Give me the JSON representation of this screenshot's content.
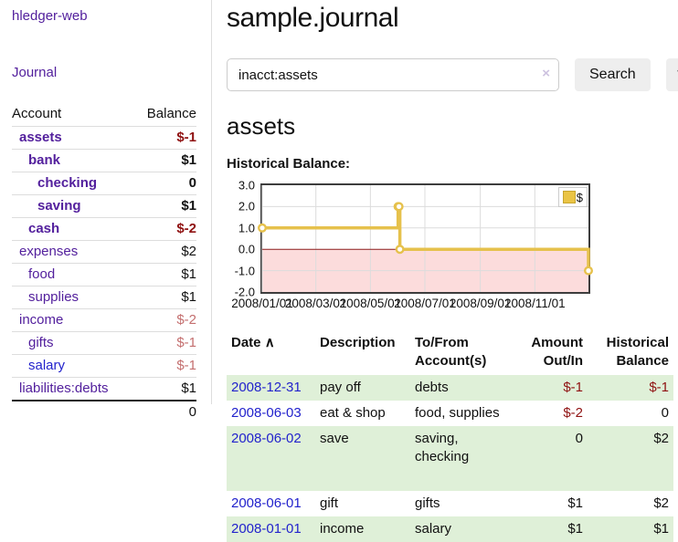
{
  "colors": {
    "link_purple": "#53209d",
    "link_blue": "#2222cc",
    "negative_bold": "#8f1111",
    "negative_soft": "#c46f6f",
    "row_green": "#dff0d8",
    "button_gray": "#eeeeee"
  },
  "sidebar": {
    "brand": "hledger-web",
    "journal_link": "Journal",
    "header": {
      "account": "Account",
      "balance": "Balance"
    },
    "accounts": [
      {
        "label": "assets",
        "indent": 0,
        "bold": true,
        "balance": "$-1",
        "neg": "bold"
      },
      {
        "label": "bank",
        "indent": 1,
        "bold": true,
        "balance": "$1",
        "neg": "none"
      },
      {
        "label": "checking",
        "indent": 2,
        "bold": true,
        "balance": "0",
        "neg": "none"
      },
      {
        "label": "saving",
        "indent": 2,
        "bold": true,
        "balance": "$1",
        "neg": "none"
      },
      {
        "label": "cash",
        "indent": 1,
        "bold": true,
        "balance": "$-2",
        "neg": "bold"
      },
      {
        "label": "expenses",
        "indent": 0,
        "bold": false,
        "balance": "$2",
        "neg": "none"
      },
      {
        "label": "food",
        "indent": 1,
        "bold": false,
        "balance": "$1",
        "neg": "none"
      },
      {
        "label": "supplies",
        "indent": 1,
        "bold": false,
        "balance": "$1",
        "neg": "none"
      },
      {
        "label": "income",
        "indent": 0,
        "bold": false,
        "balance": "$-2",
        "neg": "soft"
      },
      {
        "label": "gifts",
        "indent": 1,
        "bold": false,
        "balance": "$-1",
        "neg": "soft"
      },
      {
        "label": "salary",
        "indent": 1,
        "bold": false,
        "balance": "$-1",
        "neg": "soft",
        "link": "blue"
      },
      {
        "label": "liabilities:debts",
        "indent": 0,
        "bold": false,
        "balance": "$1",
        "neg": "none"
      }
    ],
    "total": "0"
  },
  "main": {
    "title": "sample.journal",
    "search": {
      "value": "inacct:assets",
      "clear_icon": "×",
      "search_label": "Search",
      "help_label": "?"
    },
    "account_heading": "assets",
    "section_label": "Historical Balance:"
  },
  "chart_data": {
    "type": "line",
    "step": true,
    "title": "Historical Balance:",
    "legend": [
      "$"
    ],
    "x": [
      "2008-01-01",
      "2008-06-01",
      "2008-06-02",
      "2008-06-03",
      "2008-12-31"
    ],
    "values": [
      1,
      2,
      2,
      0,
      -1
    ],
    "xlim": [
      "2008-01-01",
      "2008-12-31"
    ],
    "ylim": [
      -2,
      3
    ],
    "yticks": [
      3,
      2,
      1,
      0,
      -1,
      -2
    ],
    "xticks": [
      {
        "label": "2008/01/01",
        "date": "2008-01-01"
      },
      {
        "label": "2008/03/01",
        "date": "2008-03-01"
      },
      {
        "label": "2008/05/01",
        "date": "2008-05-01"
      },
      {
        "label": "2008/07/01",
        "date": "2008-07-01"
      },
      {
        "label": "2008/09/01",
        "date": "2008-09-01"
      },
      {
        "label": "2008/11/01",
        "date": "2008-11-01"
      }
    ],
    "grid": true,
    "legend_position": "top-right",
    "colors": {
      "line": "#e6c14c",
      "marker_fill": "#ffffff",
      "negative_region": "#fcdcdc",
      "zero_line": "#8b1d1d",
      "grid": "#dcdcdc",
      "border": "#3d3d3d"
    }
  },
  "register": {
    "sort_icon": "∧",
    "headers": [
      "Date",
      "Description",
      "To/From Account(s)",
      "Amount Out/In",
      "Historical Balance"
    ],
    "rows": [
      {
        "date": "2008-12-31",
        "description": "pay off",
        "accounts": "debts",
        "amount": "$-1",
        "amount_neg": true,
        "balance": "$-1",
        "balance_neg": true,
        "shade": true,
        "tall": false
      },
      {
        "date": "2008-06-03",
        "description": "eat & shop",
        "accounts": "food, supplies",
        "amount": "$-2",
        "amount_neg": true,
        "balance": "0",
        "balance_neg": false,
        "shade": false,
        "tall": false
      },
      {
        "date": "2008-06-02",
        "description": "save",
        "accounts": "saving, checking",
        "amount": "0",
        "amount_neg": false,
        "balance": "$2",
        "balance_neg": false,
        "shade": true,
        "tall": true
      },
      {
        "date": "2008-06-01",
        "description": "gift",
        "accounts": "gifts",
        "amount": "$1",
        "amount_neg": false,
        "balance": "$2",
        "balance_neg": false,
        "shade": false,
        "tall": false
      },
      {
        "date": "2008-01-01",
        "description": "income",
        "accounts": "salary",
        "amount": "$1",
        "amount_neg": false,
        "balance": "$1",
        "balance_neg": false,
        "shade": true,
        "tall": false
      }
    ]
  }
}
